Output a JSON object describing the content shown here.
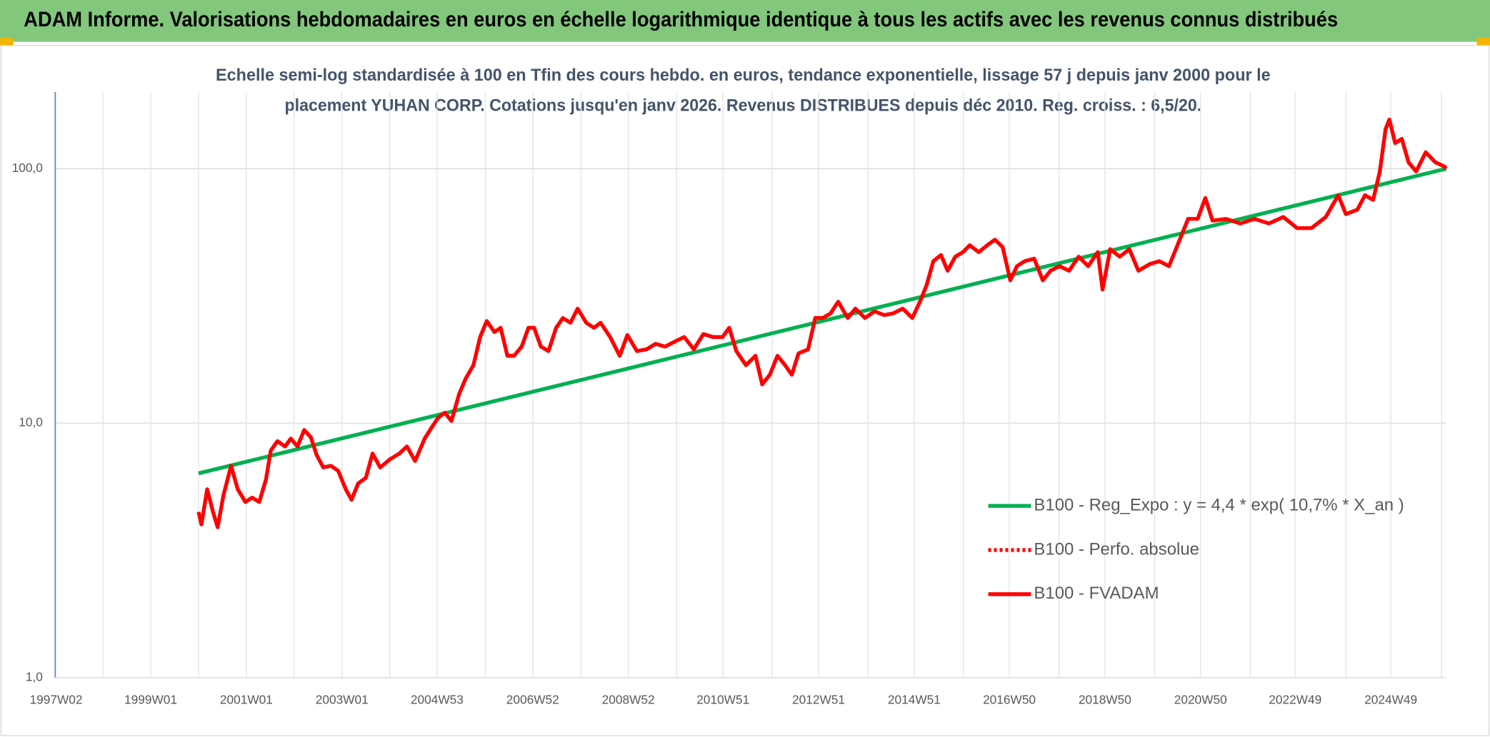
{
  "chart_data": {
    "type": "line",
    "log_scale": true,
    "grid": true,
    "legend_position": "right",
    "title": "ADAM Informe. Valorisations hebdomadaires en euros en échelle logarithmique identique à tous les actifs avec les revenus connus distribués",
    "subtitle": [
      "Echelle semi-log standardisée à 100 en Tfin des cours hebdo. en euros, tendance exponentielle, lissage 57 j depuis janv 2000 pour le",
      "placement YUHAN CORP. Cotations jusqu'en janv 2026. Revenus DISTRIBUES depuis déc 2010. Reg. croiss. : 6,5/20."
    ],
    "xlim": [
      1997,
      2026.1
    ],
    "xticks": [
      {
        "value": 1997.02,
        "label": "1997W02"
      },
      {
        "value": 1999.0,
        "label": "1999W01"
      },
      {
        "value": 2001.0,
        "label": "2001W01"
      },
      {
        "value": 2003.0,
        "label": "2003W01"
      },
      {
        "value": 2004.99,
        "label": "2004W53"
      },
      {
        "value": 2006.99,
        "label": "2006W52"
      },
      {
        "value": 2008.99,
        "label": "2008W52"
      },
      {
        "value": 2010.97,
        "label": "2010W51"
      },
      {
        "value": 2012.97,
        "label": "2012W51"
      },
      {
        "value": 2014.97,
        "label": "2014W51"
      },
      {
        "value": 2016.96,
        "label": "2016W50"
      },
      {
        "value": 2018.96,
        "label": "2018W50"
      },
      {
        "value": 2020.96,
        "label": "2020W50"
      },
      {
        "value": 2022.94,
        "label": "2022W49"
      },
      {
        "value": 2024.94,
        "label": "2024W49"
      }
    ],
    "xgrid": [
      1998,
      2000,
      2002,
      2004,
      2006,
      2008,
      2010,
      2012,
      2014,
      2016,
      2018,
      2020,
      2022,
      2024,
      2026
    ],
    "ylim": [
      1,
      200
    ],
    "yticks": [
      {
        "value": 1,
        "label": "1,0"
      },
      {
        "value": 10,
        "label": "10,0"
      },
      {
        "value": 100,
        "label": "100,0"
      }
    ],
    "series": [
      {
        "name": "B100 - Reg_Expo : y = 4,4 * exp( 10,7% *  X_an )",
        "color": "#00b050",
        "style": "solid",
        "x": [
          2000.0,
          2026.1
        ],
        "values": [
          6.35,
          100
        ]
      },
      {
        "name": "B100 - Perfo. absolue",
        "color": "#ff0000",
        "style": "dotted"
      },
      {
        "name": "B100 - FVADAM",
        "color": "#ff0000",
        "style": "solid",
        "x": [
          2000.0,
          2000.06,
          2000.18,
          2000.3,
          2000.4,
          2000.52,
          2000.68,
          2000.82,
          2000.98,
          2001.12,
          2001.27,
          2001.41,
          2001.51,
          2001.65,
          2001.81,
          2001.93,
          2002.07,
          2002.21,
          2002.35,
          2002.47,
          2002.61,
          2002.77,
          2002.92,
          2003.08,
          2003.2,
          2003.34,
          2003.5,
          2003.64,
          2003.8,
          2004.0,
          2004.2,
          2004.36,
          2004.53,
          2004.73,
          2004.89,
          2005.01,
          2005.15,
          2005.29,
          2005.45,
          2005.59,
          2005.75,
          2005.89,
          2006.03,
          2006.19,
          2006.32,
          2006.46,
          2006.6,
          2006.76,
          2006.9,
          2007.02,
          2007.16,
          2007.32,
          2007.48,
          2007.62,
          2007.78,
          2007.93,
          2008.11,
          2008.27,
          2008.41,
          2008.61,
          2008.81,
          2008.97,
          2009.17,
          2009.37,
          2009.56,
          2009.76,
          2009.96,
          2010.16,
          2010.36,
          2010.56,
          2010.76,
          2010.96,
          2011.1,
          2011.25,
          2011.45,
          2011.65,
          2011.79,
          2011.95,
          2012.11,
          2012.27,
          2012.41,
          2012.55,
          2012.75,
          2012.9,
          2013.06,
          2013.22,
          2013.38,
          2013.58,
          2013.74,
          2013.94,
          2014.14,
          2014.34,
          2014.53,
          2014.73,
          2014.93,
          2015.09,
          2015.23,
          2015.37,
          2015.53,
          2015.67,
          2015.83,
          2015.99,
          2016.13,
          2016.32,
          2016.52,
          2016.66,
          2016.82,
          2016.98,
          2017.12,
          2017.28,
          2017.48,
          2017.66,
          2017.82,
          2018.01,
          2018.21,
          2018.41,
          2018.61,
          2018.81,
          2018.91,
          2019.07,
          2019.27,
          2019.47,
          2019.66,
          2019.9,
          2020.1,
          2020.3,
          2020.5,
          2020.7,
          2020.9,
          2021.06,
          2021.21,
          2021.49,
          2021.79,
          2022.09,
          2022.39,
          2022.69,
          2022.98,
          2023.28,
          2023.58,
          2023.84,
          2024.0,
          2024.24,
          2024.4,
          2024.57,
          2024.71,
          2024.83,
          2024.91,
          2025.03,
          2025.17,
          2025.31,
          2025.47,
          2025.67,
          2025.87,
          2026.06,
          2026.1
        ],
        "values": [
          4.48,
          4.0,
          5.5,
          4.5,
          3.9,
          5.2,
          6.8,
          5.5,
          4.9,
          5.1,
          4.9,
          6.0,
          7.8,
          8.5,
          8.1,
          8.7,
          8.1,
          9.4,
          8.8,
          7.5,
          6.7,
          6.8,
          6.5,
          5.5,
          5.0,
          5.8,
          6.1,
          7.6,
          6.7,
          7.2,
          7.6,
          8.1,
          7.1,
          8.7,
          9.7,
          10.5,
          11,
          10.2,
          13,
          15,
          16.9,
          21.8,
          25.2,
          22.8,
          23.7,
          18.4,
          18.4,
          20,
          23.7,
          23.7,
          20,
          19.2,
          23.7,
          25.9,
          24.8,
          28.2,
          24.8,
          23.7,
          24.8,
          21.8,
          18.4,
          22.2,
          19.2,
          19.5,
          20.5,
          20,
          20.9,
          21.8,
          19.5,
          22.4,
          21.8,
          21.8,
          23.7,
          19.2,
          16.9,
          18.4,
          14.2,
          15.5,
          18.4,
          16.9,
          15.5,
          18.8,
          19.5,
          25.9,
          25.9,
          27,
          30,
          25.9,
          28.2,
          25.9,
          27.5,
          26.6,
          27,
          28.2,
          25.9,
          30,
          34.9,
          43.3,
          45.8,
          39.7,
          45.1,
          47,
          50,
          47,
          50.4,
          52.6,
          49.2,
          36.4,
          41.4,
          43.3,
          44.3,
          36.4,
          39.7,
          41.4,
          39.7,
          45.1,
          41.4,
          47,
          33.5,
          48.3,
          45.1,
          48.3,
          39.7,
          42.2,
          43.3,
          41.4,
          51.3,
          63.5,
          63.5,
          76.7,
          62.5,
          63.5,
          60.9,
          63.5,
          60.9,
          64.6,
          58.4,
          58.4,
          64.6,
          78.7,
          66.3,
          69,
          78.7,
          75.4,
          97.5,
          143,
          156,
          126,
          131,
          106,
          97.5,
          116,
          106,
          102,
          100
        ]
      }
    ]
  }
}
